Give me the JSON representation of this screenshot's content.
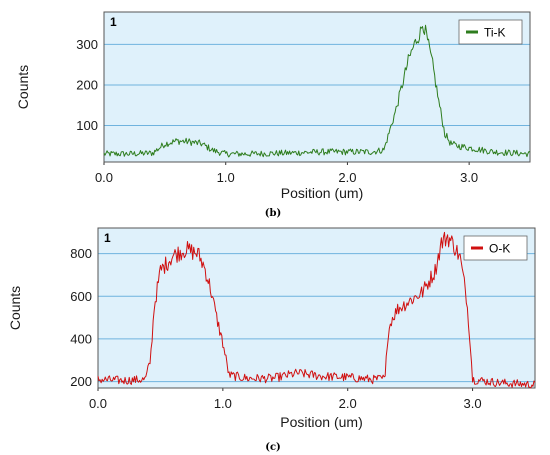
{
  "figure": {
    "panel_b": "(b)",
    "panel_c": "(c)"
  },
  "chart_data": [
    {
      "type": "line",
      "panel": "(b)",
      "corner_label": "1",
      "xlabel": "Position (um)",
      "ylabel": "Counts",
      "xlim": [
        0.0,
        3.5
      ],
      "ylim": [
        10,
        380
      ],
      "xticks": [
        "0.0",
        "1.0",
        "2.0",
        "3.0"
      ],
      "yticks": [
        "100",
        "200",
        "300"
      ],
      "grid": "horizontal",
      "legend_position": "top-right",
      "plot_bg": "#dff1fb",
      "series": [
        {
          "name": "Ti-K",
          "color": "#2e7d1e",
          "x": [
            0.0,
            0.2,
            0.4,
            0.5,
            0.6,
            0.7,
            0.8,
            0.9,
            1.0,
            1.2,
            1.5,
            1.8,
            2.0,
            2.2,
            2.3,
            2.35,
            2.4,
            2.45,
            2.5,
            2.55,
            2.6,
            2.62,
            2.65,
            2.7,
            2.75,
            2.8,
            2.85,
            2.9,
            3.0,
            3.2,
            3.5
          ],
          "values": [
            30,
            30,
            32,
            55,
            62,
            60,
            55,
            38,
            30,
            30,
            32,
            35,
            35,
            35,
            40,
            90,
            140,
            200,
            260,
            300,
            330,
            355,
            320,
            250,
            160,
            80,
            55,
            50,
            45,
            35,
            30
          ]
        }
      ]
    },
    {
      "type": "line",
      "panel": "(c)",
      "corner_label": "1",
      "xlabel": "Position (um)",
      "ylabel": "Counts",
      "xlim": [
        0.0,
        3.5
      ],
      "ylim": [
        170,
        920
      ],
      "xticks": [
        "0.0",
        "1.0",
        "2.0",
        "3.0"
      ],
      "yticks": [
        "200",
        "400",
        "600",
        "800"
      ],
      "grid": "horizontal",
      "legend_position": "top-right",
      "plot_bg": "#dff1fb",
      "series": [
        {
          "name": "O-K",
          "color": "#d01010",
          "x": [
            0.0,
            0.2,
            0.38,
            0.42,
            0.45,
            0.5,
            0.6,
            0.7,
            0.8,
            0.85,
            0.9,
            0.95,
            1.0,
            1.05,
            1.2,
            1.4,
            1.6,
            1.8,
            2.0,
            2.2,
            2.3,
            2.32,
            2.35,
            2.4,
            2.5,
            2.6,
            2.7,
            2.75,
            2.8,
            2.85,
            2.9,
            2.95,
            2.98,
            3.0,
            3.2,
            3.5
          ],
          "values": [
            210,
            205,
            210,
            300,
            550,
            720,
            790,
            820,
            800,
            740,
            640,
            500,
            380,
            230,
            215,
            215,
            240,
            225,
            220,
            210,
            215,
            420,
            490,
            540,
            580,
            620,
            720,
            850,
            880,
            840,
            780,
            600,
            400,
            210,
            195,
            185
          ]
        }
      ]
    }
  ]
}
